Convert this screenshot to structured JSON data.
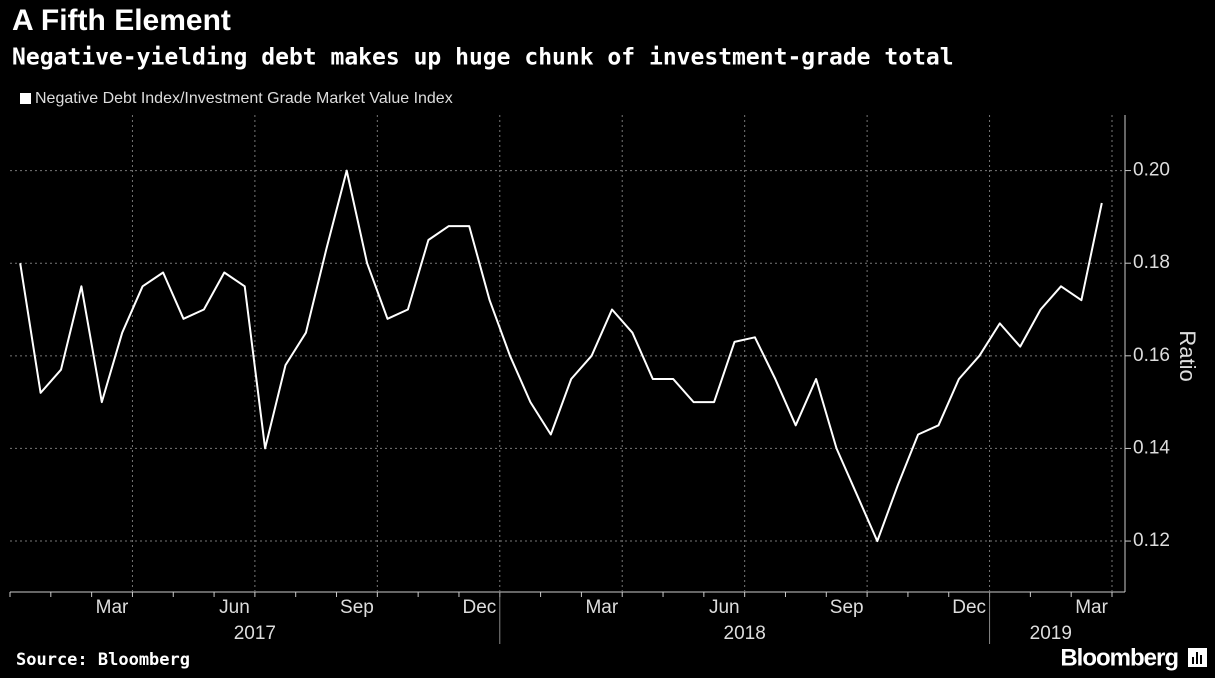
{
  "title": "A Fifth Element",
  "chart_data": {
    "type": "line",
    "subtitle": "Negative-yielding debt makes up huge chunk of investment-grade total",
    "y_label": "Ratio",
    "source": "Source: Bloomberg",
    "brand": "Bloomberg",
    "x": [
      "2017-01",
      "2017-01",
      "2017-02",
      "2017-02",
      "2017-03",
      "2017-03",
      "2017-04",
      "2017-04",
      "2017-05",
      "2017-05",
      "2017-06",
      "2017-06",
      "2017-07",
      "2017-07",
      "2017-08",
      "2017-08",
      "2017-09",
      "2017-09",
      "2017-10",
      "2017-10",
      "2017-11",
      "2017-11",
      "2017-12",
      "2017-12",
      "2018-01",
      "2018-01",
      "2018-02",
      "2018-02",
      "2018-03",
      "2018-03",
      "2018-04",
      "2018-04",
      "2018-05",
      "2018-05",
      "2018-06",
      "2018-06",
      "2018-07",
      "2018-07",
      "2018-08",
      "2018-08",
      "2018-09",
      "2018-09",
      "2018-10",
      "2018-10",
      "2018-11",
      "2018-11",
      "2018-12",
      "2018-12",
      "2019-01",
      "2019-01",
      "2019-02",
      "2019-02",
      "2019-03",
      "2019-03"
    ],
    "series": [
      {
        "name": "Negative Debt Index/Investment Grade Market Value Index",
        "color": "#ffffff",
        "values": [
          0.18,
          0.152,
          0.157,
          0.175,
          0.15,
          0.165,
          0.175,
          0.178,
          0.168,
          0.17,
          0.178,
          0.175,
          0.14,
          0.158,
          0.165,
          0.183,
          0.2,
          0.18,
          0.168,
          0.17,
          0.185,
          0.188,
          0.188,
          0.172,
          0.16,
          0.15,
          0.143,
          0.155,
          0.16,
          0.17,
          0.165,
          0.155,
          0.155,
          0.15,
          0.15,
          0.163,
          0.164,
          0.155,
          0.145,
          0.155,
          0.14,
          0.13,
          0.12,
          0.132,
          0.143,
          0.145,
          0.155,
          0.16,
          0.167,
          0.162,
          0.17,
          0.175,
          0.172,
          0.193
        ]
      }
    ],
    "xlim": [
      "2017-01",
      "2019-04"
    ],
    "xticks": [
      {
        "value": "2017-03",
        "label": "Mar"
      },
      {
        "value": "2017-06",
        "label": "Jun"
      },
      {
        "value": "2017-09",
        "label": "Sep"
      },
      {
        "value": "2017-12",
        "label": "Dec"
      },
      {
        "value": "2018-03",
        "label": "Mar"
      },
      {
        "value": "2018-06",
        "label": "Jun"
      },
      {
        "value": "2018-09",
        "label": "Sep"
      },
      {
        "value": "2018-12",
        "label": "Dec"
      },
      {
        "value": "2019-03",
        "label": "Mar"
      }
    ],
    "xgrid": [
      "2017-04",
      "2017-07",
      "2017-10",
      "2018-01",
      "2018-04",
      "2018-07",
      "2018-10",
      "2019-01",
      "2019-04"
    ],
    "year_labels": [
      {
        "value": "2017-01",
        "label": "2017"
      },
      {
        "value": "2018-01",
        "label": "2018"
      },
      {
        "value": "2019-01",
        "label": "2019"
      }
    ],
    "ylim": [
      0.109,
      0.212
    ],
    "yticks": [
      0.12,
      0.14,
      0.16,
      0.18,
      0.2
    ],
    "ytick_labels": [
      "0.12",
      "0.14",
      "0.16",
      "0.18",
      "0.20"
    ],
    "grid": true
  }
}
